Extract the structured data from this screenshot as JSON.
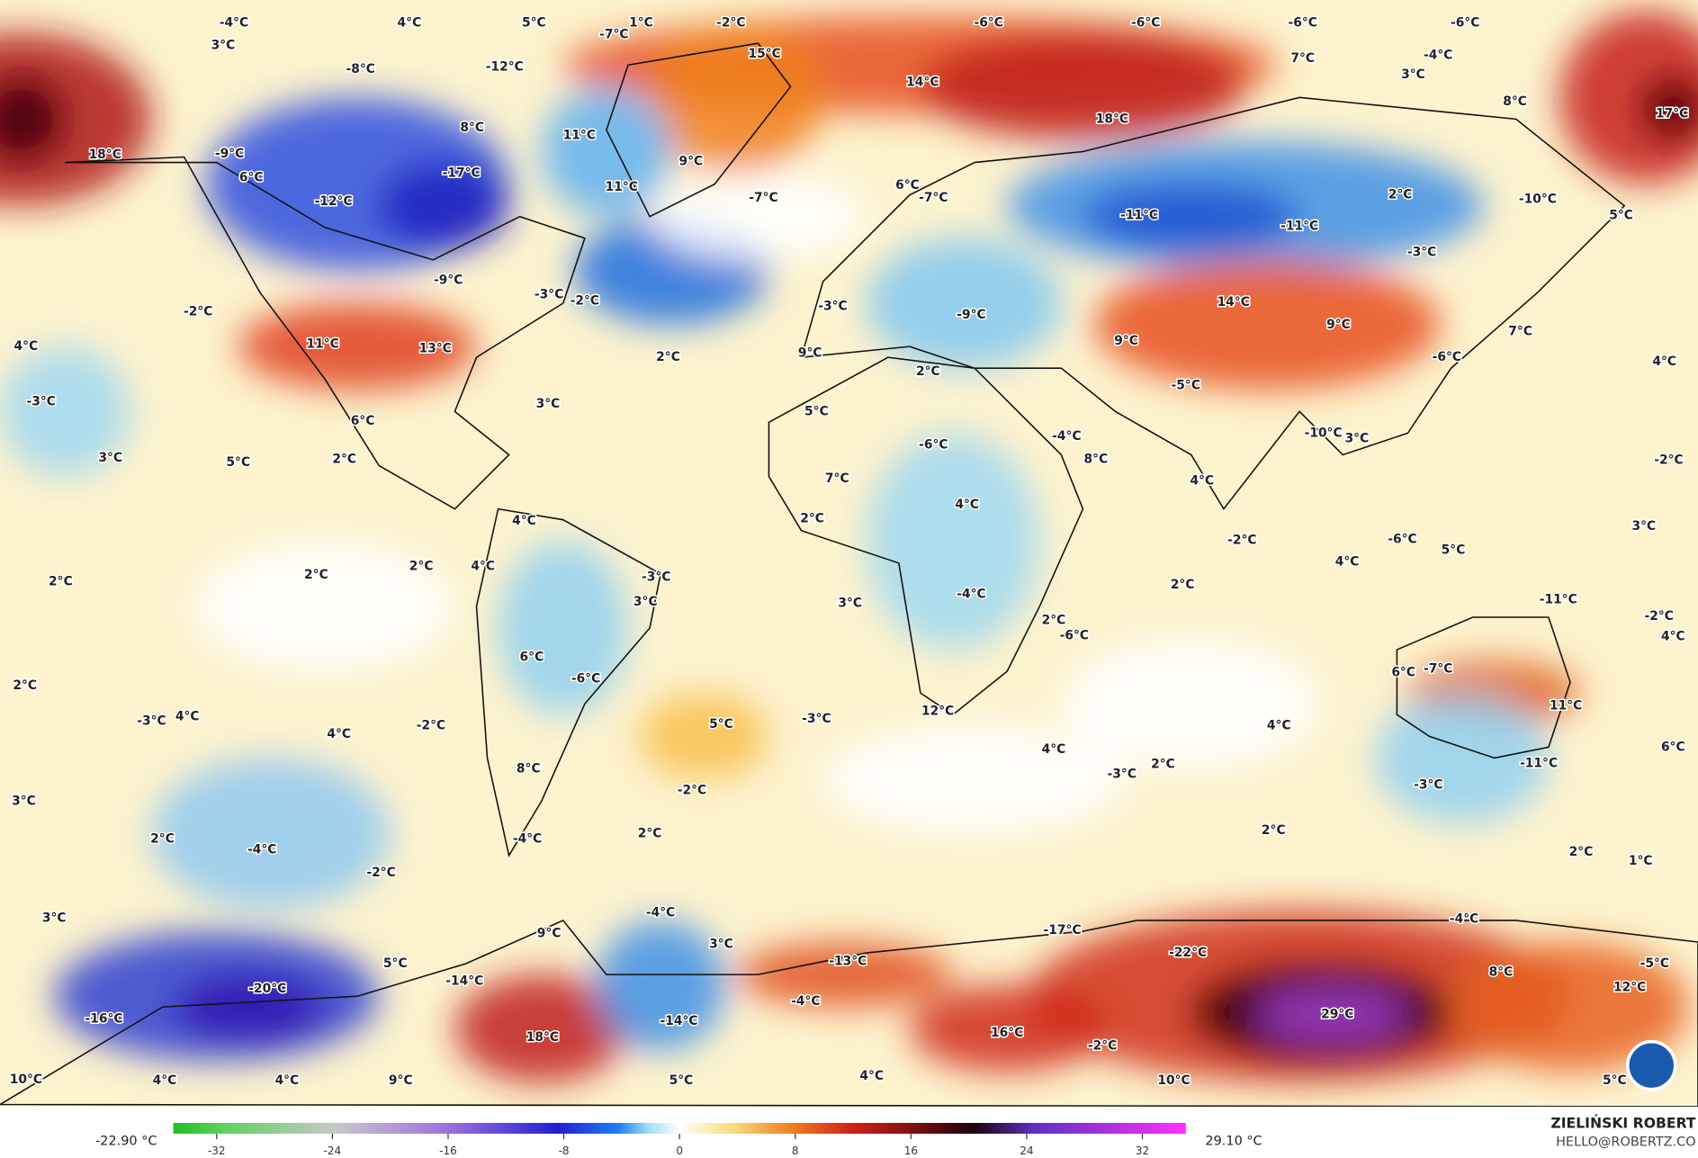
{
  "map": {
    "labels": [
      "-4°C",
      "4°C",
      "5°C",
      "1°C",
      "-2°C",
      "-6°C",
      "-6°C",
      "-6°C",
      "-6°C",
      "3°C",
      "-7°C",
      "15°C",
      "7°C",
      "-4°C",
      "3°C",
      "-8°C",
      "-12°C",
      "14°C",
      "8°C",
      "17°C",
      "8°C",
      "18°C",
      "11°C",
      "18°C",
      "-9°C",
      "9°C",
      "-17°C",
      "6°C",
      "11°C",
      "6°C",
      "-7°C",
      "-7°C",
      "2°C",
      "-10°C",
      "-12°C",
      "-11°C",
      "-11°C",
      "5°C",
      "-3°C",
      "-9°C",
      "-3°C",
      "-2°C",
      "-2°C",
      "-3°C",
      "14°C",
      "-9°C",
      "9°C",
      "7°C",
      "4°C",
      "11°C",
      "13°C",
      "2°C",
      "9°C",
      "9°C",
      "-6°C",
      "4°C",
      "2°C",
      "-5°C",
      "-3°C",
      "3°C",
      "5°C",
      "6°C",
      "-4°C",
      "-6°C",
      "-10°C",
      "3°C",
      "3°C",
      "5°C",
      "2°C",
      "8°C",
      "-2°C",
      "7°C",
      "4°C",
      "4°C",
      "4°C",
      "2°C",
      "3°C",
      "-2°C",
      "-6°C",
      "5°C",
      "4°C",
      "4°C",
      "2°C",
      "2°C",
      "2°C",
      "-3°C",
      "2°C",
      "-11°C",
      "-4°C",
      "3°C",
      "3°C",
      "-2°C",
      "2°C",
      "-6°C",
      "4°C",
      "6°C",
      "-7°C",
      "6°C",
      "2°C",
      "-6°C",
      "11°C",
      "12°C",
      "-3°C",
      "4°C",
      "-2°C",
      "5°C",
      "-3°C",
      "4°C",
      "4°C",
      "6°C",
      "4°C",
      "8°C",
      "2°C",
      "-3°C",
      "-11°C",
      "-3°C",
      "-2°C",
      "3°C",
      "2°C",
      "2°C",
      "2°C",
      "-4°C",
      "-4°C",
      "2°C",
      "1°C",
      "-2°C",
      "-4°C",
      "-4°C",
      "3°C",
      "-17°C",
      "9°C",
      "3°C",
      "-22°C",
      "-13°C",
      "5°C",
      "-5°C",
      "8°C",
      "-14°C",
      "-20°C",
      "12°C",
      "-4°C",
      "-16°C",
      "-14°C",
      "29°C",
      "16°C",
      "18°C",
      "-2°C",
      "10°C",
      "4°C",
      "4°C",
      "9°C",
      "5°C",
      "4°C",
      "10°C",
      "5°C"
    ]
  },
  "colorbar": {
    "range": [
      -35,
      35
    ],
    "ticks": [
      -32,
      -24,
      -16,
      -8,
      0,
      8,
      16,
      24,
      32
    ],
    "min_label": "-22.90 °C",
    "max_label": "29.10 °C"
  },
  "credits": {
    "author": "ZIELIŃSKI ROBERT",
    "email": "HELLO@ROBERTZ.CO"
  }
}
